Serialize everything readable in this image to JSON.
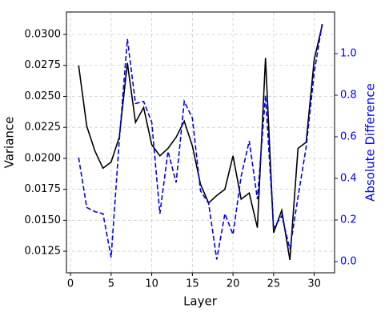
{
  "chart_data": {
    "type": "line",
    "x_label": "Layer",
    "y_label": "Variance",
    "y2_label": "Absolute Difference",
    "x": [
      1,
      2,
      3,
      4,
      5,
      6,
      7,
      8,
      9,
      10,
      11,
      12,
      13,
      14,
      15,
      16,
      17,
      18,
      19,
      20,
      21,
      22,
      23,
      24,
      25,
      26,
      27,
      28,
      29,
      30,
      31
    ],
    "series": [
      {
        "color": "#000000",
        "dash": "solid",
        "values": [
          0.0275,
          0.0226,
          0.0206,
          0.0192,
          0.0197,
          0.0217,
          0.0277,
          0.0229,
          0.0241,
          0.0211,
          0.0202,
          0.0208,
          0.0217,
          0.023,
          0.021,
          0.0179,
          0.0164,
          0.017,
          0.0175,
          0.0202,
          0.0167,
          0.0172,
          0.0144,
          0.0281,
          0.014,
          0.0158,
          0.0118,
          0.0208,
          0.0213,
          0.028,
          0.0308
        ]
      },
      {
        "color": "#0000ff",
        "dash": "dashed",
        "axis": "y2",
        "values": [
          0.5,
          0.26,
          0.24,
          0.23,
          0.02,
          0.58,
          1.07,
          0.76,
          0.77,
          0.67,
          0.23,
          0.53,
          0.38,
          0.77,
          0.69,
          0.34,
          0.28,
          0.01,
          0.23,
          0.13,
          0.41,
          0.58,
          0.3,
          0.8,
          0.16,
          0.22,
          0.06,
          0.31,
          0.55,
          0.91,
          1.15
        ]
      }
    ],
    "xlim": [
      -0.5,
      32.5
    ],
    "xticks": [
      0,
      5,
      10,
      15,
      20,
      25,
      30
    ],
    "ylim": [
      0.01076,
      0.03181
    ],
    "yticks": [
      {
        "value": 0.0125,
        "label": "0.0125"
      },
      {
        "value": 0.015,
        "label": "0.0150"
      },
      {
        "value": 0.0175,
        "label": "0.0175"
      },
      {
        "value": 0.02,
        "label": "0.0200"
      },
      {
        "value": 0.0225,
        "label": "0.0225"
      },
      {
        "value": 0.025,
        "label": "0.0250"
      },
      {
        "value": 0.0275,
        "label": "0.0275"
      },
      {
        "value": 0.03,
        "label": "0.0300"
      }
    ],
    "y2lim": [
      -0.054,
      1.2
    ],
    "y2ticks": [
      {
        "value": 0,
        "label": "0.0"
      },
      {
        "value": 0.2,
        "label": "0.2"
      },
      {
        "value": 0.4,
        "label": "0.4"
      },
      {
        "value": 0.6,
        "label": "0.6"
      },
      {
        "value": 0.8,
        "label": "0.8"
      },
      {
        "value": 1.0,
        "label": "1.0"
      }
    ],
    "y2_color": "#0000ff",
    "grid": true
  }
}
